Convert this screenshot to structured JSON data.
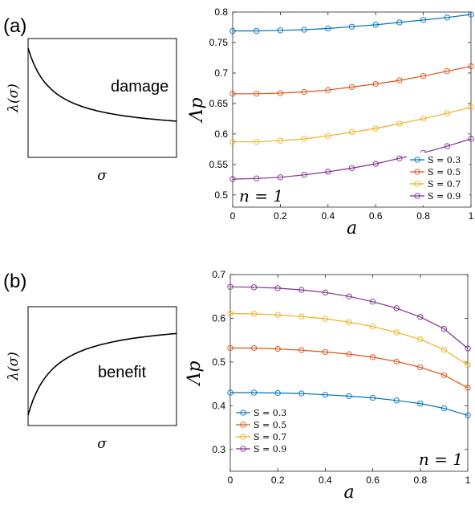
{
  "panels": [
    {
      "label": "(a)",
      "schematic": {
        "word": "damage",
        "ylabel": "λ(σ)",
        "xlabel": "σ",
        "trend": "decreasing"
      },
      "annotation": "n = 1"
    },
    {
      "label": "(b)",
      "schematic": {
        "word": "benefit",
        "ylabel": "λ(σ)",
        "xlabel": "σ",
        "trend": "increasing"
      },
      "annotation": "n = 1"
    }
  ],
  "colors": {
    "S=0.3": "#0072BD",
    "S=0.5": "#D95319",
    "S=0.7": "#EDB120",
    "S=0.9": "#7E2F8E"
  },
  "chart_data": [
    {
      "type": "line",
      "xlabel": "a",
      "ylabel": "Λp",
      "xlim": [
        0,
        1
      ],
      "ylim": [
        0.48,
        0.8
      ],
      "xticks": [
        "0",
        "0.2",
        "0.4",
        "0.6",
        "0.8",
        "1"
      ],
      "yticks": [
        "0.5",
        "0.55",
        "0.6",
        "0.65",
        "0.7",
        "0.75",
        "0.8"
      ],
      "legend_position": "bottom-right",
      "x": [
        0,
        0.1,
        0.2,
        0.3,
        0.4,
        0.5,
        0.6,
        0.7,
        0.8,
        0.9,
        1.0
      ],
      "series": [
        {
          "name": "S = 0.3",
          "color": "#0072BD",
          "values": [
            0.769,
            0.769,
            0.77,
            0.771,
            0.773,
            0.776,
            0.779,
            0.783,
            0.787,
            0.791,
            0.796
          ]
        },
        {
          "name": "S = 0.5",
          "color": "#D95319",
          "values": [
            0.666,
            0.666,
            0.667,
            0.669,
            0.672,
            0.677,
            0.682,
            0.688,
            0.695,
            0.703,
            0.711
          ]
        },
        {
          "name": "S = 0.7",
          "color": "#EDB120",
          "values": [
            0.587,
            0.587,
            0.589,
            0.592,
            0.597,
            0.603,
            0.609,
            0.617,
            0.625,
            0.634,
            0.644
          ]
        },
        {
          "name": "S = 0.9",
          "color": "#7E2F8E",
          "values": [
            0.526,
            0.527,
            0.529,
            0.533,
            0.538,
            0.544,
            0.551,
            0.56,
            0.569,
            0.58,
            0.592
          ]
        }
      ]
    },
    {
      "type": "line",
      "xlabel": "a",
      "ylabel": "Λp",
      "xlim": [
        0,
        1
      ],
      "ylim": [
        0.25,
        0.7
      ],
      "xticks": [
        "0",
        "0.2",
        "0.4",
        "0.6",
        "0.8",
        "1"
      ],
      "yticks": [
        "0.3",
        "0.4",
        "0.5",
        "0.6",
        "0.7"
      ],
      "legend_position": "bottom-left",
      "x": [
        0,
        0.1,
        0.2,
        0.3,
        0.4,
        0.5,
        0.6,
        0.7,
        0.8,
        0.9,
        1.0
      ],
      "series": [
        {
          "name": "S = 0.3",
          "color": "#0072BD",
          "values": [
            0.43,
            0.43,
            0.429,
            0.428,
            0.425,
            0.422,
            0.418,
            0.412,
            0.405,
            0.394,
            0.378
          ]
        },
        {
          "name": "S = 0.5",
          "color": "#D95319",
          "values": [
            0.532,
            0.532,
            0.53,
            0.527,
            0.523,
            0.518,
            0.511,
            0.501,
            0.488,
            0.47,
            0.441
          ]
        },
        {
          "name": "S = 0.7",
          "color": "#EDB120",
          "values": [
            0.611,
            0.61,
            0.608,
            0.604,
            0.599,
            0.591,
            0.581,
            0.568,
            0.552,
            0.528,
            0.493
          ]
        },
        {
          "name": "S = 0.9",
          "color": "#7E2F8E",
          "values": [
            0.672,
            0.671,
            0.669,
            0.665,
            0.659,
            0.65,
            0.638,
            0.623,
            0.603,
            0.576,
            0.531
          ]
        }
      ]
    }
  ]
}
